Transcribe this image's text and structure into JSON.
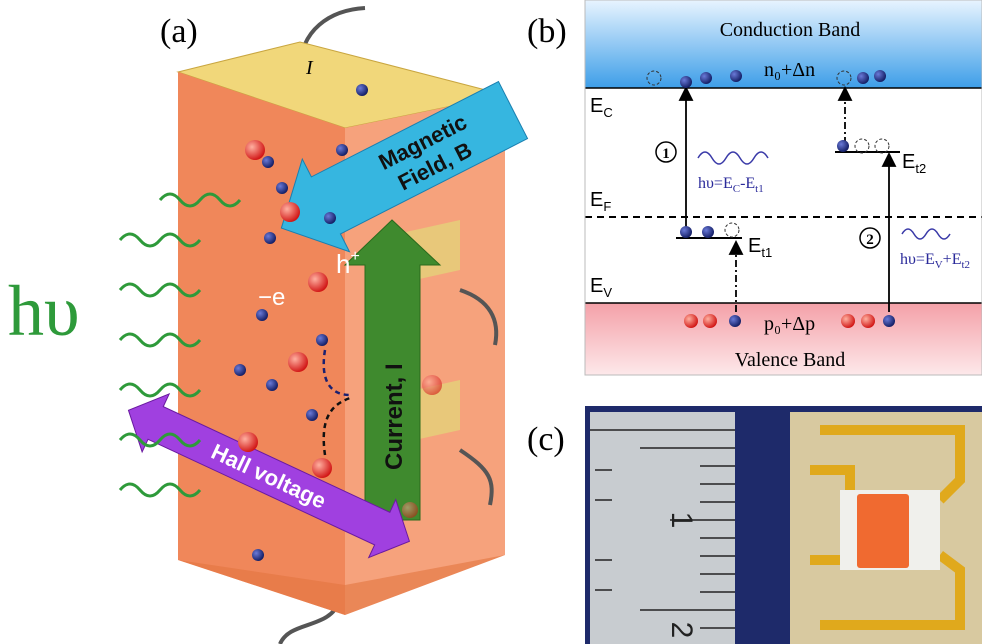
{
  "panel_a": {
    "label": "(a)",
    "current_symbol": "I",
    "magnetic_field": [
      "Magnetic",
      "Field, B"
    ],
    "current": "Current, I",
    "hall_voltage": "Hall voltage",
    "photon": "hυ",
    "hole": "h",
    "hole_charge": "+",
    "electron": "−e"
  },
  "panel_b": {
    "label": "(b)",
    "conduction_band": "Conduction Band",
    "valence_band": "Valence Band",
    "electron_density": "n₀+Δn",
    "hole_density": "p₀+Δp",
    "levels": [
      {
        "main": "E",
        "sub": "C"
      },
      {
        "main": "E",
        "sub": "F"
      },
      {
        "main": "E",
        "sub": "V"
      },
      {
        "main": "E",
        "sub": "t1"
      },
      {
        "main": "E",
        "sub": "t2"
      }
    ],
    "transitions": [
      {
        "number": "1",
        "label": [
          "hυ=E",
          "C",
          "-E",
          "t1"
        ]
      },
      {
        "number": "2",
        "label": [
          "hυ=E",
          "V",
          "+E",
          "t2"
        ]
      }
    ]
  },
  "panel_c": {
    "label": "(c)",
    "ruler_marks": [
      "1",
      "2"
    ]
  }
}
